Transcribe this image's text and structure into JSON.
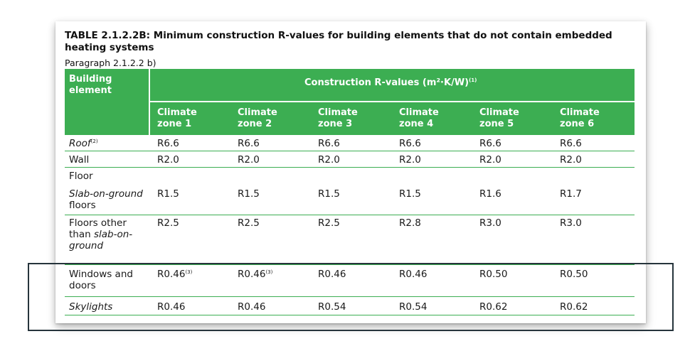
{
  "table": {
    "title_bold": "TABLE 2.1.2.2B:",
    "title_rest": " Minimum construction R-values for building elements that do not contain embedded heating systems",
    "paragraph": "Paragraph 2.1.2.2 b)",
    "header": {
      "col0_line1": "Building",
      "col0_line2": "element",
      "group": "Construction R-values (m²·K/W)",
      "group_sup": "(1)",
      "zones": [
        {
          "line1": "Climate",
          "line2": "zone 1"
        },
        {
          "line1": "Climate",
          "line2": "zone 2"
        },
        {
          "line1": "Climate",
          "line2": "zone 3"
        },
        {
          "line1": "Climate",
          "line2": "zone 4"
        },
        {
          "line1": "Climate",
          "line2": "zone 5"
        },
        {
          "line1": "Climate",
          "line2": "zone 6"
        }
      ]
    },
    "roof": {
      "label": "Roof",
      "sup": "(2)",
      "values": [
        "R6.6",
        "R6.6",
        "R6.6",
        "R6.6",
        "R6.6",
        "R6.6"
      ]
    },
    "wall": {
      "label": "Wall",
      "values": [
        "R2.0",
        "R2.0",
        "R2.0",
        "R2.0",
        "R2.0",
        "R2.0"
      ]
    },
    "floor": {
      "label": "Floor"
    },
    "slab": {
      "label_line1": "Slab-on-ground",
      "label_line2": "floors",
      "values": [
        "R1.5",
        "R1.5",
        "R1.5",
        "R1.5",
        "R1.6",
        "R1.7"
      ]
    },
    "floors_other": {
      "line1": "Floors other",
      "line2_plain": "than ",
      "line2_italic": "slab-on-",
      "line3_italic": "ground",
      "values": [
        "R2.5",
        "R2.5",
        "R2.5",
        "R2.8",
        "R3.0",
        "R3.0"
      ]
    },
    "windows": {
      "line1": "Windows and",
      "line2": "doors",
      "values": [
        "R0.46",
        "R0.46",
        "R0.46",
        "R0.46",
        "R0.50",
        "R0.50"
      ],
      "sup": "(3)"
    },
    "skylights": {
      "label": "Skylights",
      "values": [
        "R0.46",
        "R0.46",
        "R0.54",
        "R0.54",
        "R0.62",
        "R0.62"
      ]
    }
  },
  "colors": {
    "header_green": "#3cae52",
    "highlight_border": "#26343c"
  }
}
